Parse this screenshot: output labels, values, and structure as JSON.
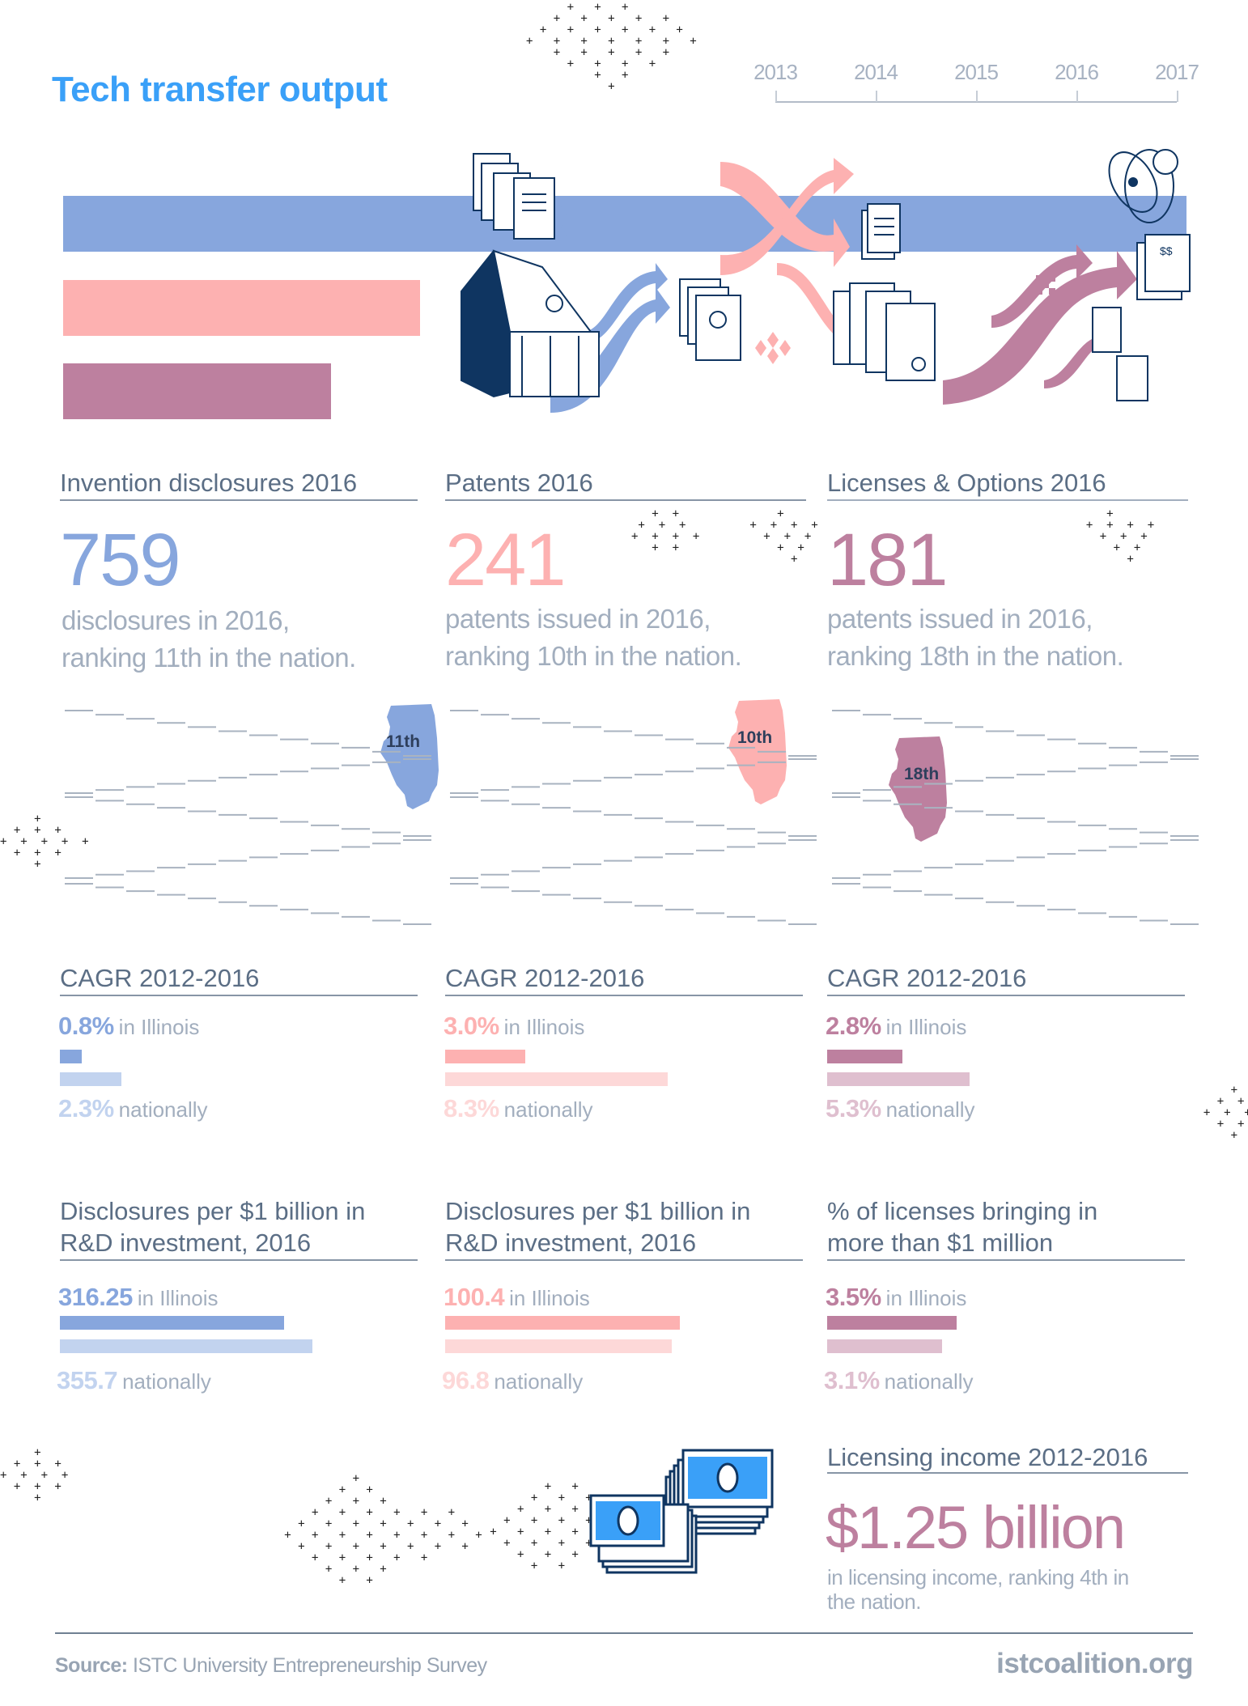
{
  "title": "Tech transfer output",
  "timeline": {
    "years": [
      "2013",
      "2014",
      "2015",
      "2016",
      "2017"
    ]
  },
  "colors": {
    "title": "#3aa0f8",
    "blue": "#87a6dd",
    "blue_light": "#c2d3ef",
    "pink": "#fdb1b1",
    "pink_light": "#fdd8d8",
    "mauve": "#bd809f",
    "mauve_light": "#dfbfcf",
    "navy": "#0f3561",
    "bill_blue": "#3aa0f8",
    "text_gray": "#a2aebe",
    "heading_gray": "#5b6e85"
  },
  "chart_data": [
    {
      "type": "bar",
      "title": "Tech transfer output (2016)",
      "orientation": "horizontal",
      "categories": [
        "Invention disclosures",
        "Patents",
        "Licenses & Options"
      ],
      "values": [
        759,
        241,
        181
      ],
      "colors": [
        "#87a6dd",
        "#fdb1b1",
        "#bd809f"
      ]
    },
    {
      "type": "bar",
      "title": "CAGR 2012-2016 — Invention disclosures",
      "categories": [
        "in Illinois",
        "nationally"
      ],
      "values": [
        0.8,
        2.3
      ],
      "unit": "%"
    },
    {
      "type": "bar",
      "title": "CAGR 2012-2016 — Patents",
      "categories": [
        "in Illinois",
        "nationally"
      ],
      "values": [
        3.0,
        8.3
      ],
      "unit": "%"
    },
    {
      "type": "bar",
      "title": "CAGR 2012-2016 — Licenses & Options",
      "categories": [
        "in Illinois",
        "nationally"
      ],
      "values": [
        2.8,
        5.3
      ],
      "unit": "%"
    },
    {
      "type": "bar",
      "title": "Disclosures per $1 billion in R&D investment, 2016",
      "categories": [
        "in Illinois",
        "nationally"
      ],
      "values": [
        316.25,
        355.7
      ]
    },
    {
      "type": "bar",
      "title": "Disclosures per $1 billion in R&D investment, 2016 (patents column)",
      "categories": [
        "in Illinois",
        "nationally"
      ],
      "values": [
        100.4,
        96.8
      ]
    },
    {
      "type": "bar",
      "title": "% of licenses bringing in more than $1 million",
      "categories": [
        "in Illinois",
        "nationally"
      ],
      "values": [
        3.5,
        3.1
      ],
      "unit": "%"
    }
  ],
  "columns": [
    {
      "heading": "Invention disclosures 2016",
      "number": "759",
      "sub1": "disclosures in 2016,",
      "sub2": "ranking 11th in the nation.",
      "rank": "11th",
      "cagr": {
        "heading": "CAGR 2012-2016",
        "il_value": "0.8%",
        "il_label": "in Illinois",
        "nat_value": "2.3%",
        "nat_label": "nationally"
      },
      "per": {
        "heading1": "Disclosures per $1 billion in",
        "heading2": "R&D investment, 2016",
        "il_value": "316.25",
        "il_label": "in Illinois",
        "nat_value": "355.7",
        "nat_label": "nationally"
      }
    },
    {
      "heading": "Patents 2016",
      "number": "241",
      "sub1": "patents issued in 2016,",
      "sub2": "ranking 10th in the nation.",
      "rank": "10th",
      "cagr": {
        "heading": "CAGR 2012-2016",
        "il_value": "3.0%",
        "il_label": "in Illinois",
        "nat_value": "8.3%",
        "nat_label": "nationally"
      },
      "per": {
        "heading1": "Disclosures per $1 billion in",
        "heading2": "R&D investment, 2016",
        "il_value": "100.4",
        "il_label": "in Illinois",
        "nat_value": "96.8",
        "nat_label": "nationally"
      }
    },
    {
      "heading": "Licenses & Options 2016",
      "number": "181",
      "sub1": "patents issued in 2016,",
      "sub2": "ranking 18th in the nation.",
      "rank": "18th",
      "cagr": {
        "heading": "CAGR 2012-2016",
        "il_value": "2.8%",
        "il_label": "in Illinois",
        "nat_value": "5.3%",
        "nat_label": "nationally"
      },
      "per": {
        "heading1": "% of licenses bringing in",
        "heading2": "more than $1 million",
        "il_value": "3.5%",
        "il_label": "in Illinois",
        "nat_value": "3.1%",
        "nat_label": "nationally"
      }
    }
  ],
  "licensing": {
    "heading": "Licensing income 2012-2016",
    "value": "$1.25 billion",
    "sub1": "in licensing income, ranking 4th in",
    "sub2": "the nation."
  },
  "footer": {
    "source_label": "Source:",
    "source_text": " ISTC University Entrepreneurship Survey",
    "site": "istcoalition.org"
  }
}
